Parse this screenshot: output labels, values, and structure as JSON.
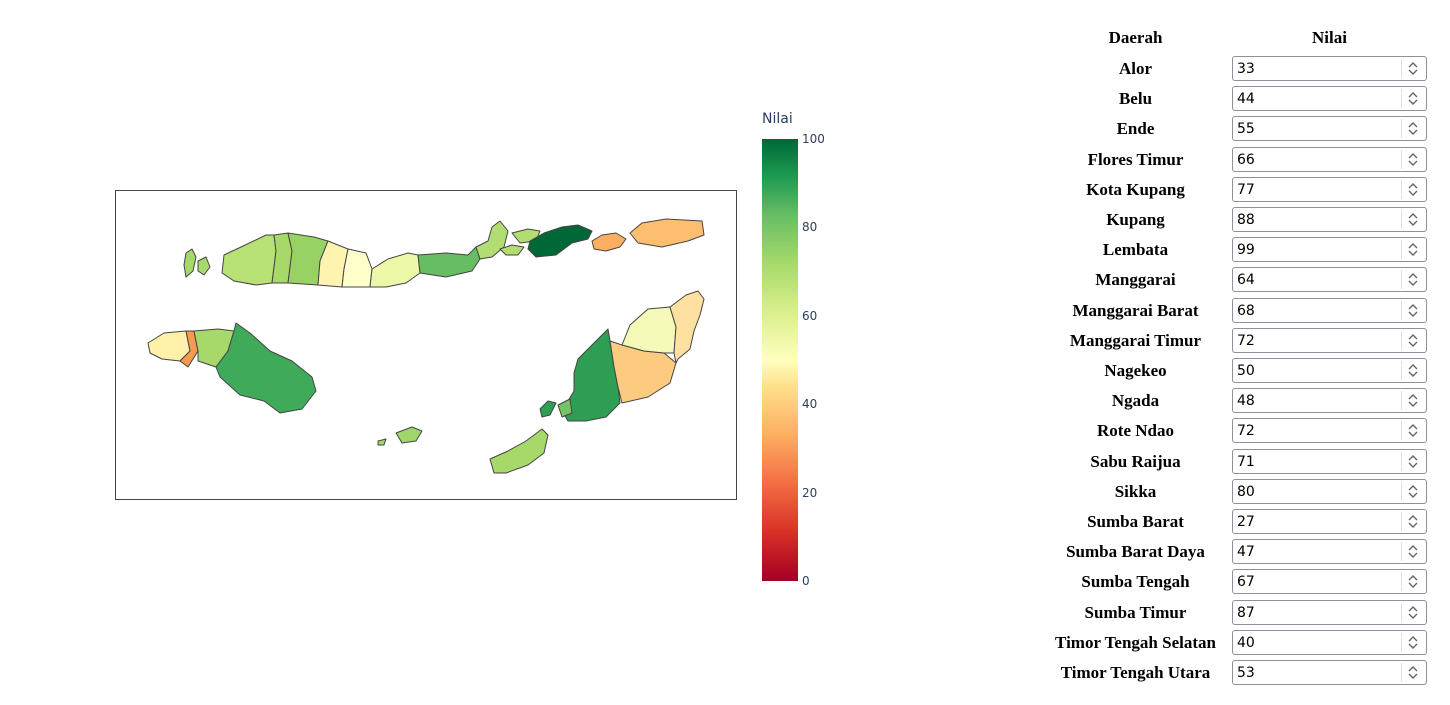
{
  "colorbar": {
    "title": "Nilai",
    "ticks": [
      "100",
      "80",
      "60",
      "40",
      "20",
      "0"
    ],
    "colors": [
      "#a50026",
      "#f46d43",
      "#fdae61",
      "#fee08b",
      "#ffffbf",
      "#d9ef8b",
      "#a6d96a",
      "#66bd63",
      "#1a9850",
      "#006837"
    ]
  },
  "table": {
    "header_region": "Daerah",
    "header_value": "Nilai",
    "rows": [
      {
        "name": "Alor",
        "value": "33"
      },
      {
        "name": "Belu",
        "value": "44"
      },
      {
        "name": "Ende",
        "value": "55"
      },
      {
        "name": "Flores Timur",
        "value": "66"
      },
      {
        "name": "Kota Kupang",
        "value": "77"
      },
      {
        "name": "Kupang",
        "value": "88"
      },
      {
        "name": "Lembata",
        "value": "99"
      },
      {
        "name": "Manggarai",
        "value": "64"
      },
      {
        "name": "Manggarai Barat",
        "value": "68"
      },
      {
        "name": "Manggarai Timur",
        "value": "72"
      },
      {
        "name": "Nagekeo",
        "value": "50"
      },
      {
        "name": "Ngada",
        "value": "48"
      },
      {
        "name": "Rote Ndao",
        "value": "72"
      },
      {
        "name": "Sabu Raijua",
        "value": "71"
      },
      {
        "name": "Sikka",
        "value": "80"
      },
      {
        "name": "Sumba Barat",
        "value": "27"
      },
      {
        "name": "Sumba Barat Daya",
        "value": "47"
      },
      {
        "name": "Sumba Tengah",
        "value": "67"
      },
      {
        "name": "Sumba Timur",
        "value": "87"
      },
      {
        "name": "Timor Tengah Selatan",
        "value": "40"
      },
      {
        "name": "Timor Tengah Utara",
        "value": "53"
      }
    ]
  }
}
